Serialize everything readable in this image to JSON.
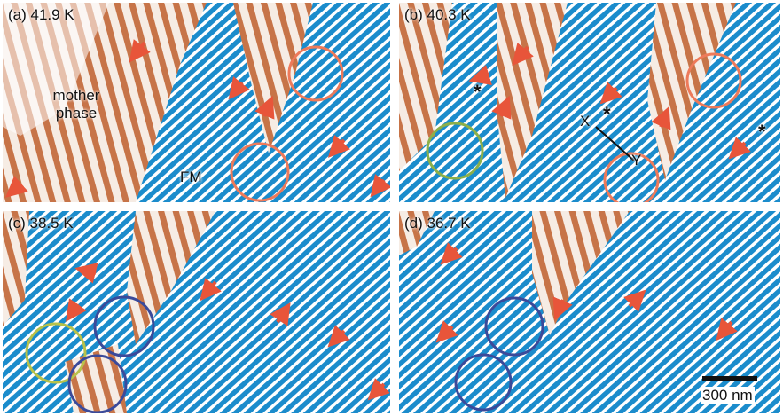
{
  "panels": [
    {
      "label": "(a) 41.9 K",
      "annotations": [
        "mother phase",
        "FM"
      ]
    },
    {
      "label": "(b) 40.3 K",
      "annotations": [
        "*",
        "*",
        "*",
        "X",
        "Y"
      ]
    },
    {
      "label": "(c) 38.5 K"
    },
    {
      "label": "(d) 36.7 K",
      "scale_bar": "300 nm"
    }
  ]
}
